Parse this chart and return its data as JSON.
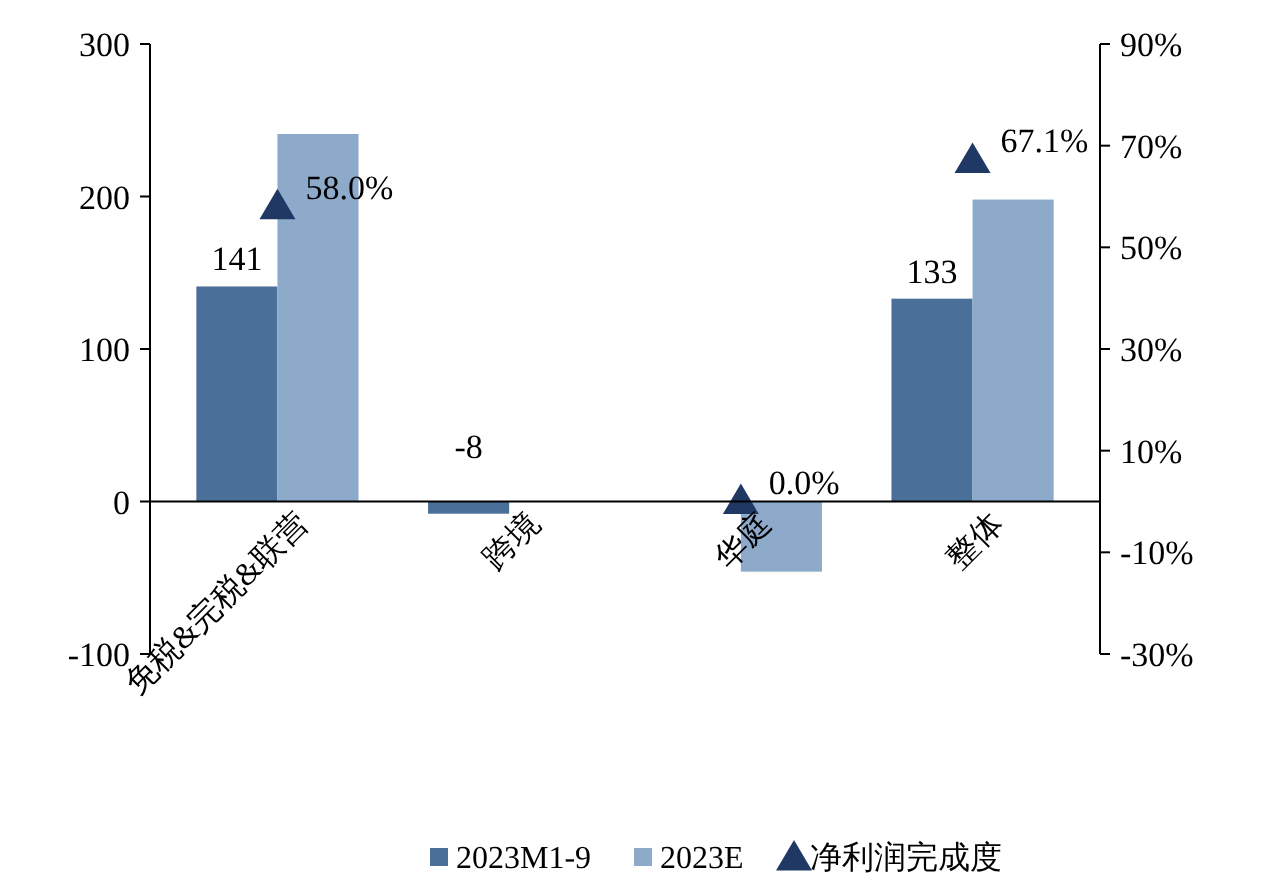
{
  "chart_data": {
    "type": "bar",
    "categories": [
      "免税&完税&联营",
      "跨境",
      "华庭",
      "整体"
    ],
    "series": [
      {
        "name": "2023M1-9",
        "color": "#4a7099",
        "values": [
          141,
          -8,
          null,
          133
        ],
        "value_labels": [
          "141",
          "-8",
          null,
          "133"
        ]
      },
      {
        "name": "2023E",
        "color": "#8eaacb",
        "values": [
          241,
          null,
          -46,
          198
        ]
      },
      {
        "name": "净利润完成度",
        "type": "scatter",
        "axis": "y2",
        "marker": "triangle",
        "color": "#1f3864",
        "values": [
          58.0,
          null,
          0.0,
          67.1
        ],
        "value_labels": [
          "58.0%",
          null,
          "0.0%",
          "67.1%"
        ]
      }
    ],
    "ylim": [
      -100,
      300
    ],
    "yticks": [
      -100,
      0,
      100,
      200,
      300
    ],
    "y2lim": [
      -30,
      90
    ],
    "y2ticks": [
      {
        "value": -30,
        "label": "-30%"
      },
      {
        "value": -10,
        "label": "-10%"
      },
      {
        "value": 10,
        "label": "10%"
      },
      {
        "value": 30,
        "label": "30%"
      },
      {
        "value": 50,
        "label": "50%"
      },
      {
        "value": 70,
        "label": "70%"
      },
      {
        "value": 90,
        "label": "90%"
      }
    ],
    "grid": false,
    "legend": "bottom"
  }
}
